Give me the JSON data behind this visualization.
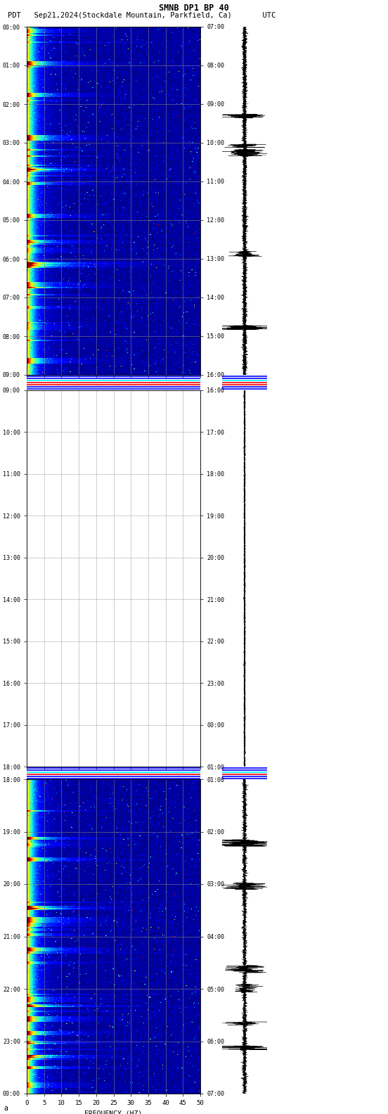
{
  "title_line1": "SMNB DP1 BP 40",
  "title_line2": "PDT   Sep21,2024(Stockdale Mountain, Parkfield, Ca)       UTC",
  "freq_min": 0,
  "freq_max": 50,
  "freq_ticks": [
    0,
    5,
    10,
    15,
    20,
    25,
    30,
    35,
    40,
    45,
    50
  ],
  "xlabel": "FREQUENCY (HZ)",
  "bg_color": "white",
  "colormap": "jet",
  "panel1_left_labels": [
    "00:00",
    "01:00",
    "02:00",
    "03:00",
    "04:00",
    "05:00",
    "06:00",
    "07:00",
    "08:00",
    "09:00"
  ],
  "panel1_right_labels": [
    "07:00",
    "08:00",
    "09:00",
    "10:00",
    "11:00",
    "12:00",
    "13:00",
    "14:00",
    "15:00",
    "16:00"
  ],
  "panel2_left_labels": [
    "09:00",
    "10:00",
    "11:00",
    "12:00",
    "13:00",
    "14:00",
    "15:00",
    "16:00",
    "17:00",
    "18:00"
  ],
  "panel2_right_labels": [
    "16:00",
    "17:00",
    "18:00",
    "19:00",
    "20:00",
    "21:00",
    "22:00",
    "23:00",
    "00:00",
    "01:00"
  ],
  "panel3_left_labels": [
    "18:00",
    "19:00",
    "20:00",
    "21:00",
    "22:00",
    "23:00",
    "00:00"
  ],
  "panel3_right_labels": [
    "01:00",
    "02:00",
    "03:00",
    "04:00",
    "05:00",
    "06:00",
    "07:00"
  ],
  "separator1_colors": [
    "blue",
    "blue",
    "red",
    "red",
    "cyan",
    "blue",
    "blue"
  ],
  "separator2_colors": [
    "blue",
    "blue",
    "red",
    "cyan",
    "blue",
    "blue"
  ]
}
